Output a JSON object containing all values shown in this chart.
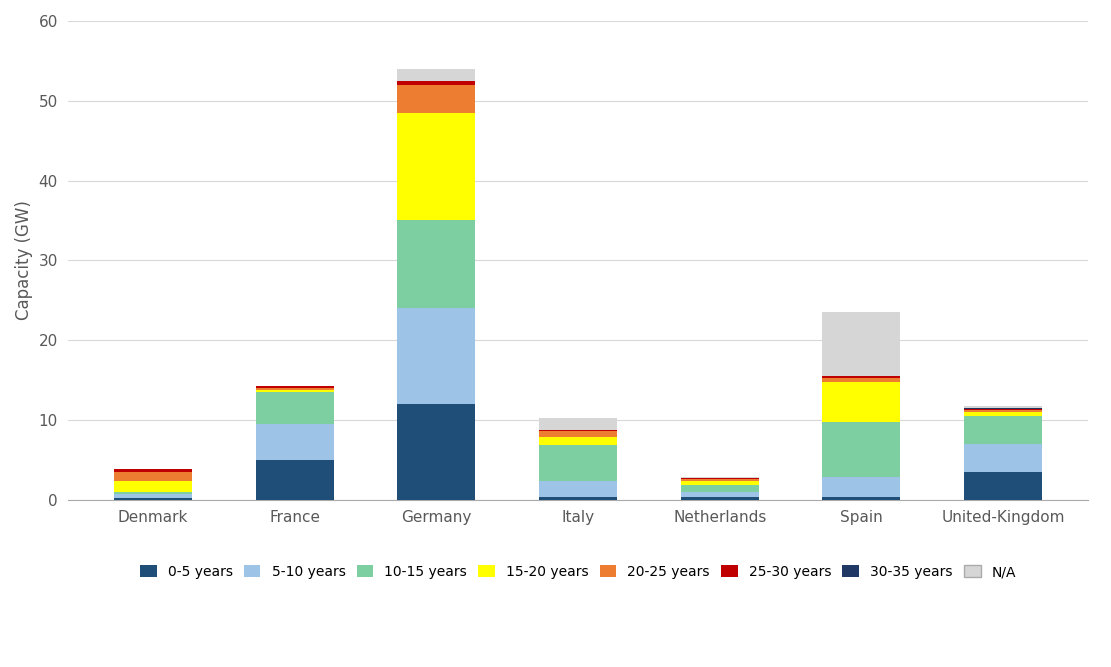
{
  "categories": [
    "Denmark",
    "France",
    "Germany",
    "Italy",
    "Netherlands",
    "Spain",
    "United-Kingdom"
  ],
  "series": {
    "0-5 years": [
      0.2,
      5.0,
      12.0,
      0.4,
      0.4,
      0.3,
      3.5
    ],
    "5-10 years": [
      0.5,
      4.5,
      12.0,
      2.0,
      0.6,
      2.5,
      3.5
    ],
    "10-15 years": [
      0.3,
      4.0,
      11.0,
      4.5,
      0.9,
      7.0,
      3.5
    ],
    "15-20 years": [
      1.3,
      0.3,
      13.5,
      1.0,
      0.5,
      5.0,
      0.5
    ],
    "20-25 years": [
      1.2,
      0.2,
      3.5,
      0.7,
      0.2,
      0.5,
      0.2
    ],
    "25-30 years": [
      0.3,
      0.2,
      0.5,
      0.1,
      0.1,
      0.2,
      0.2
    ],
    "30-35 years": [
      0.1,
      0.0,
      0.0,
      0.0,
      0.0,
      0.0,
      0.1
    ],
    "N/A": [
      0.0,
      0.0,
      1.5,
      1.5,
      0.2,
      8.0,
      0.2
    ]
  },
  "colors": {
    "0-5 years": "#1f4e79",
    "5-10 years": "#9dc3e6",
    "10-15 years": "#7dcea0",
    "15-20 years": "#ffff00",
    "20-25 years": "#ed7d31",
    "25-30 years": "#c00000",
    "30-35 years": "#1f3864",
    "N/A": "#d6d6d6"
  },
  "legend_colors": {
    "0-5 years": "#1f4e79",
    "5-10 years": "#9dc3e6",
    "10-15 years": "#7dcea0",
    "15-20 years": "#ffff00",
    "20-25 years": "#ed7d31",
    "25-30 years": "#c00000",
    "30-35 years": "#1f3864",
    "N/A": "#d6d6d6"
  },
  "ylabel": "Capacity (GW)",
  "ylim": [
    0,
    60
  ],
  "yticks": [
    0,
    10,
    20,
    30,
    40,
    50,
    60
  ],
  "background_color": "#ffffff",
  "grid_color": "#d9d9d9"
}
